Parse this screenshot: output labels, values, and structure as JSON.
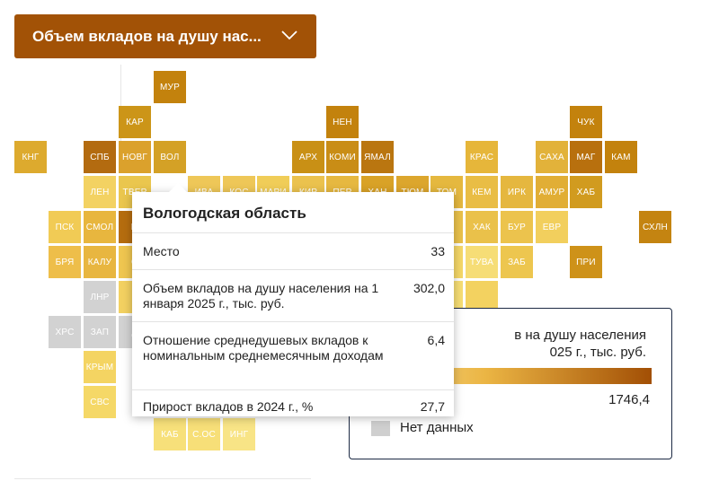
{
  "dropdown": {
    "label": "Объем вкладов на душу нас...",
    "icon": "chevron-down-icon",
    "bg": "#a25206"
  },
  "legend": {
    "title_line1": "в на душу населения",
    "title_line2": "025 г., тыс. руб.",
    "max_value": "1746,4",
    "no_data": "Нет данных",
    "gradient_colors": [
      "#fae5a0",
      "#ebb544",
      "#a24f05"
    ]
  },
  "tooltip": {
    "title": "Вологодская область",
    "rows": [
      {
        "label": "Место",
        "value": "33"
      },
      {
        "label": "Объем вкладов на душу населения на 1 января 2025 г., тыс. руб.",
        "value": "302,0"
      },
      {
        "label": "Отношение среднедушевых вкладов к номинальным среднемесячным доходам",
        "value": "6,4"
      },
      {
        "label": "Прирост вкладов в 2024 г., %",
        "value": "27,7"
      }
    ]
  },
  "tiles": [
    {
      "code": "МУР",
      "color": "#c3820d"
    },
    {
      "code": "КАР",
      "color": "#cc9518"
    },
    {
      "code": "НЕН",
      "color": "#c3820d"
    },
    {
      "code": "ЧУК",
      "color": "#c3820d"
    },
    {
      "code": "КНГ",
      "color": "#ddaa2e"
    },
    {
      "code": "СПБ",
      "color": "#b36b10"
    },
    {
      "code": "НОВГ",
      "color": "#dba12c"
    },
    {
      "code": "ВОЛ",
      "color": "#d4a126"
    },
    {
      "code": "АРХ",
      "color": "#c99015"
    },
    {
      "code": "КОМИ",
      "color": "#c98d16"
    },
    {
      "code": "ЯМАЛ",
      "color": "#ba7610"
    },
    {
      "code": "КРАС",
      "color": "#e6b63a"
    },
    {
      "code": "САХА",
      "color": "#e2b23a"
    },
    {
      "code": "МАГ",
      "color": "#b8700e"
    },
    {
      "code": "КАМ",
      "color": "#c3820d"
    },
    {
      "code": "ЛЕН",
      "color": "#f3d262"
    },
    {
      "code": "ТВЕР",
      "color": "#eac64e"
    },
    {
      "code": "ИВА",
      "color": "#eec758"
    },
    {
      "code": "КОС",
      "color": "#eec758"
    },
    {
      "code": "МАРИ",
      "color": "#f0cd58"
    },
    {
      "code": "КИР",
      "color": "#ebc24e"
    },
    {
      "code": "ПЕР",
      "color": "#e6b840"
    },
    {
      "code": "ХАН",
      "color": "#d9a227"
    },
    {
      "code": "ТЮМ",
      "color": "#dca62d"
    },
    {
      "code": "ТОМ",
      "color": "#e5b83f"
    },
    {
      "code": "КЕМ",
      "color": "#e9bd45"
    },
    {
      "code": "ИРК",
      "color": "#e5b73f"
    },
    {
      "code": "АМУР",
      "color": "#e1ae35"
    },
    {
      "code": "ХАБ",
      "color": "#d19b1f"
    },
    {
      "code": "ПСК",
      "color": "#f1cb55"
    },
    {
      "code": "СМОЛ",
      "color": "#e8b63e"
    },
    {
      "code": "М",
      "color": "#b56d0f"
    },
    {
      "code": "ХАК",
      "color": "#eac14a"
    },
    {
      "code": "БУР",
      "color": "#ecc34d"
    },
    {
      "code": "ЕВР",
      "color": "#f2cf5d"
    },
    {
      "code": "СХЛН",
      "color": "#c48411"
    },
    {
      "code": "БРЯ",
      "color": "#eebe4a"
    },
    {
      "code": "КАЛУ",
      "color": "#e8b640"
    },
    {
      "code": "О",
      "color": "#efc650"
    },
    {
      "code": "ТУВА",
      "color": "#f6dd76"
    },
    {
      "code": "ЗАБ",
      "color": "#edc64f"
    },
    {
      "code": "ПРИ",
      "color": "#ce9219"
    },
    {
      "code": "ЛНР",
      "color": "#d2d2d2"
    },
    {
      "code": "К",
      "color": "#f3d161"
    },
    {
      "code": "ХРС",
      "color": "#d2d2d2"
    },
    {
      "code": "ЗАП",
      "color": "#d2d2d2"
    },
    {
      "code": "Д",
      "color": "#d2d2d2"
    },
    {
      "code": "КРЫМ",
      "color": "#f4d462"
    },
    {
      "code": "СВС",
      "color": "#f5d867"
    },
    {
      "code": "КАБ",
      "color": "#f7e07a"
    },
    {
      "code": "С.ОС",
      "color": "#f7df78"
    },
    {
      "code": "ИНГ",
      "color": "#f8e486"
    },
    {
      "code": "",
      "color": "#f2d05e"
    },
    {
      "code": "",
      "color": "#eac24b"
    },
    {
      "code": "",
      "color": "#f5d868"
    },
    {
      "code": "",
      "color": "#f2cd5a"
    },
    {
      "code": "",
      "color": "#f7de74"
    },
    {
      "code": "",
      "color": "#f6dc70"
    },
    {
      "code": "",
      "color": "#f4d56a"
    },
    {
      "code": "",
      "color": "#f8e17d"
    },
    {
      "code": "",
      "color": "#f4d465"
    },
    {
      "code": "",
      "color": "#f3d260"
    },
    {
      "code": "",
      "color": "#f0c955"
    },
    {
      "code": "",
      "color": "#f5d96b"
    }
  ]
}
